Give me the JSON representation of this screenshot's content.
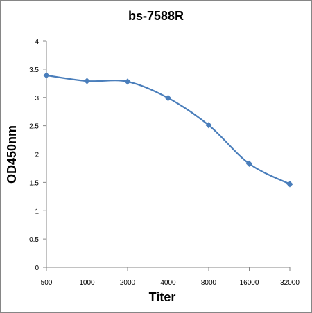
{
  "chart_data": {
    "type": "line",
    "title": "bs-7588R",
    "xlabel": "Titer",
    "ylabel": "OD450nm",
    "categories": [
      "500",
      "1000",
      "2000",
      "4000",
      "8000",
      "16000",
      "32000"
    ],
    "series": [
      {
        "values": [
          3.39,
          3.29,
          3.28,
          2.99,
          2.51,
          1.83,
          1.47
        ]
      }
    ],
    "ylim": [
      0,
      4
    ],
    "yticks": [
      "0",
      "0.5",
      "1",
      "1.5",
      "2",
      "2.5",
      "3",
      "3.5",
      "4"
    ],
    "grid": false,
    "legend": "none",
    "smooth": true,
    "marker": "diamond",
    "colors": {
      "series": "#4a7ebb",
      "axis": "#868686"
    }
  }
}
